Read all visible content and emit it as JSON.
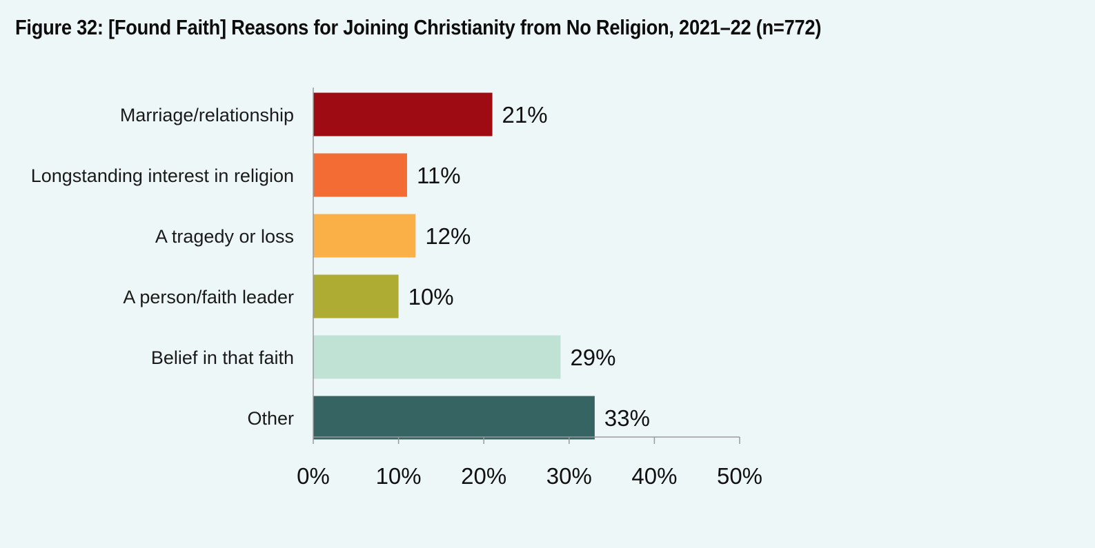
{
  "title": "Figure 32: [Found Faith] Reasons for Joining Christianity from No Religion, 2021–22 (n=772)",
  "chart_data": {
    "type": "bar",
    "orientation": "horizontal",
    "categories": [
      "Marriage/relationship",
      "Longstanding interest in religion",
      "A tragedy or loss",
      "A person/faith leader",
      "Belief in that faith",
      "Other"
    ],
    "values": [
      21,
      11,
      12,
      10,
      29,
      33
    ],
    "value_labels": [
      "21%",
      "11%",
      "12%",
      "10%",
      "29%",
      "33%"
    ],
    "bar_colors": [
      "#9e0b12",
      "#f26c33",
      "#fbb047",
      "#afac33",
      "#bfe2d4",
      "#356462"
    ],
    "xlim": [
      0,
      50
    ],
    "x_ticks": [
      0,
      10,
      20,
      30,
      40,
      50
    ],
    "x_tick_labels": [
      "0%",
      "10%",
      "20%",
      "30%",
      "40%",
      "50%"
    ],
    "grid": false,
    "legend": "none"
  }
}
